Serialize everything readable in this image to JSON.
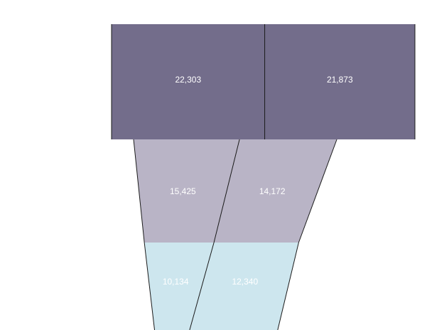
{
  "chart_data": {
    "type": "funnel",
    "orientation": "vertical",
    "stacked": true,
    "stages": 3,
    "series": [
      {
        "name": "",
        "color": "#736d8b",
        "values": [
          22303,
          15425,
          10134
        ],
        "labels": [
          "22,303",
          "15,425",
          "10,134"
        ]
      },
      {
        "name": "",
        "color": "#b9b4c6",
        "values": [
          21873,
          14172,
          12340
        ],
        "labels": [
          "21,873",
          "14,172",
          "12,340"
        ]
      }
    ],
    "stage_colors": [
      "#736d8b",
      "#b9b4c6",
      "#cde6ee"
    ],
    "label_color": "#ffffff",
    "legend": "none"
  }
}
